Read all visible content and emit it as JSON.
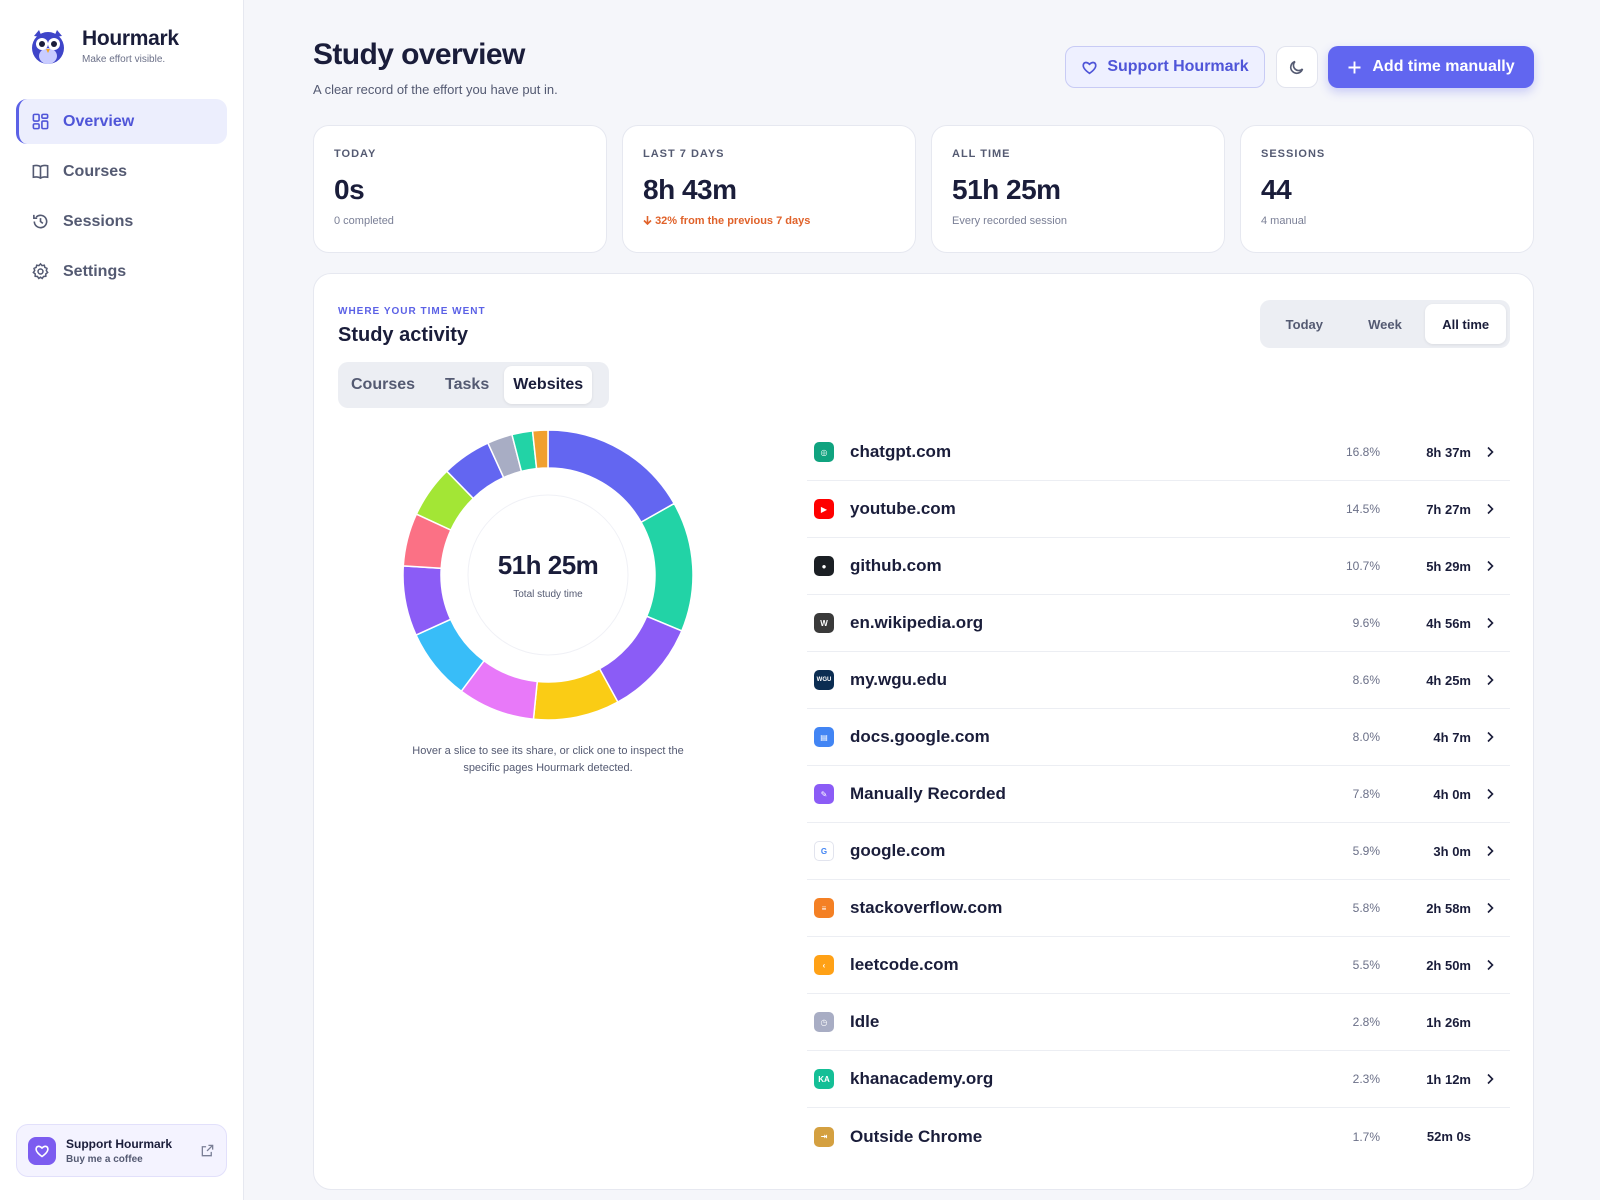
{
  "brand": {
    "name": "Hourmark",
    "tagline": "Make effort visible."
  },
  "nav": [
    {
      "label": "Overview",
      "icon": "grid-icon",
      "active": true
    },
    {
      "label": "Courses",
      "icon": "book-icon",
      "active": false
    },
    {
      "label": "Sessions",
      "icon": "history-icon",
      "active": false
    },
    {
      "label": "Settings",
      "icon": "gear-icon",
      "active": false
    }
  ],
  "support_card": {
    "title": "Support Hourmark",
    "subtitle": "Buy me a coffee"
  },
  "header": {
    "title": "Study overview",
    "subtitle": "A clear record of the effort you have put in.",
    "support_label": "Support Hourmark",
    "add_label": "Add time manually"
  },
  "stats": [
    {
      "label": "TODAY",
      "value": "0s",
      "note": "0 completed"
    },
    {
      "label": "LAST 7 DAYS",
      "value": "8h 43m",
      "note": "32% from the previous 7 days",
      "trend": "down"
    },
    {
      "label": "ALL TIME",
      "value": "51h 25m",
      "note": "Every recorded session"
    },
    {
      "label": "SESSIONS",
      "value": "44",
      "note": "4 manual"
    }
  ],
  "activity": {
    "eyebrow": "WHERE YOUR TIME WENT",
    "title": "Study activity",
    "ranges": [
      "Today",
      "Week",
      "All time"
    ],
    "active_range": "All time",
    "tabs": [
      "Courses",
      "Tasks",
      "Websites"
    ],
    "active_tab": "Websites",
    "total": "51h 25m",
    "total_caption": "Total study time",
    "hint": "Hover a slice to see its share, or click one to inspect the specific pages Hourmark detected."
  },
  "colors": {
    "accent": "#6166f0",
    "trend_down": "#e0622a"
  },
  "chart_data": {
    "type": "pie",
    "slices": [
      {
        "label": "chatgpt.com",
        "value": 16.8,
        "color": "#6366f1"
      },
      {
        "label": "youtube.com",
        "value": 14.5,
        "color": "#22d3a6"
      },
      {
        "label": "github.com",
        "value": 10.7,
        "color": "#8b5cf6"
      },
      {
        "label": "en.wikipedia.org",
        "value": 9.6,
        "color": "#facc15"
      },
      {
        "label": "my.wgu.edu",
        "value": 8.6,
        "color": "#e879f9"
      },
      {
        "label": "docs.google.com",
        "value": 8.0,
        "color": "#38bdf8"
      },
      {
        "label": "Manually Recorded",
        "value": 7.8,
        "color": "#8b5cf6"
      },
      {
        "label": "google.com",
        "value": 5.9,
        "color": "#fb7185"
      },
      {
        "label": "stackoverflow.com",
        "value": 5.8,
        "color": "#a3e635"
      },
      {
        "label": "leetcode.com",
        "value": 5.5,
        "color": "#6366f1"
      },
      {
        "label": "Idle",
        "value": 2.8,
        "color": "#a8adc4"
      },
      {
        "label": "khanacademy.org",
        "value": 2.3,
        "color": "#22d3a6"
      },
      {
        "label": "Outside Chrome",
        "value": 1.7,
        "color": "#f0a030"
      }
    ]
  },
  "websites": [
    {
      "name": "chatgpt.com",
      "pct": "16.8%",
      "time": "8h 37m",
      "icon": "chatgpt-icon",
      "icon_color": "#10a37f",
      "glyph": "◎",
      "chevron": true
    },
    {
      "name": "youtube.com",
      "pct": "14.5%",
      "time": "7h 27m",
      "icon": "youtube-icon",
      "icon_color": "#ff0000",
      "glyph": "▶",
      "chevron": true
    },
    {
      "name": "github.com",
      "pct": "10.7%",
      "time": "5h 29m",
      "icon": "github-icon",
      "icon_color": "#1b1f24",
      "glyph": "●",
      "chevron": true
    },
    {
      "name": "en.wikipedia.org",
      "pct": "9.6%",
      "time": "4h 56m",
      "icon": "wikipedia-icon",
      "icon_color": "#3a3a3a",
      "glyph": "W",
      "chevron": true
    },
    {
      "name": "my.wgu.edu",
      "pct": "8.6%",
      "time": "4h 25m",
      "icon": "wgu-icon",
      "icon_color": "#0b2d52",
      "glyph": "WGU",
      "chevron": true
    },
    {
      "name": "docs.google.com",
      "pct": "8.0%",
      "time": "4h 7m",
      "icon": "google-docs-icon",
      "icon_color": "#4285f4",
      "glyph": "▤",
      "chevron": true
    },
    {
      "name": "Manually Recorded",
      "pct": "7.8%",
      "time": "4h 0m",
      "icon": "manual-entry-icon",
      "icon_color": "#8b5cf6",
      "glyph": "✎",
      "chevron": true
    },
    {
      "name": "google.com",
      "pct": "5.9%",
      "time": "3h 0m",
      "icon": "google-icon",
      "icon_color": "#ffffff",
      "glyph": "G",
      "chevron": true
    },
    {
      "name": "stackoverflow.com",
      "pct": "5.8%",
      "time": "2h 58m",
      "icon": "stackoverflow-icon",
      "icon_color": "#f48024",
      "glyph": "≡",
      "chevron": true
    },
    {
      "name": "leetcode.com",
      "pct": "5.5%",
      "time": "2h 50m",
      "icon": "leetcode-icon",
      "icon_color": "#ffa116",
      "glyph": "‹",
      "chevron": true
    },
    {
      "name": "Idle",
      "pct": "2.8%",
      "time": "1h 26m",
      "icon": "clock-icon",
      "icon_color": "#a8adc4",
      "glyph": "◷",
      "chevron": false
    },
    {
      "name": "khanacademy.org",
      "pct": "2.3%",
      "time": "1h 12m",
      "icon": "khanacademy-icon",
      "icon_color": "#14bf96",
      "glyph": "KA",
      "chevron": true
    },
    {
      "name": "Outside Chrome",
      "pct": "1.7%",
      "time": "52m 0s",
      "icon": "exit-icon",
      "icon_color": "#d4a040",
      "glyph": "⇥",
      "chevron": false
    }
  ]
}
